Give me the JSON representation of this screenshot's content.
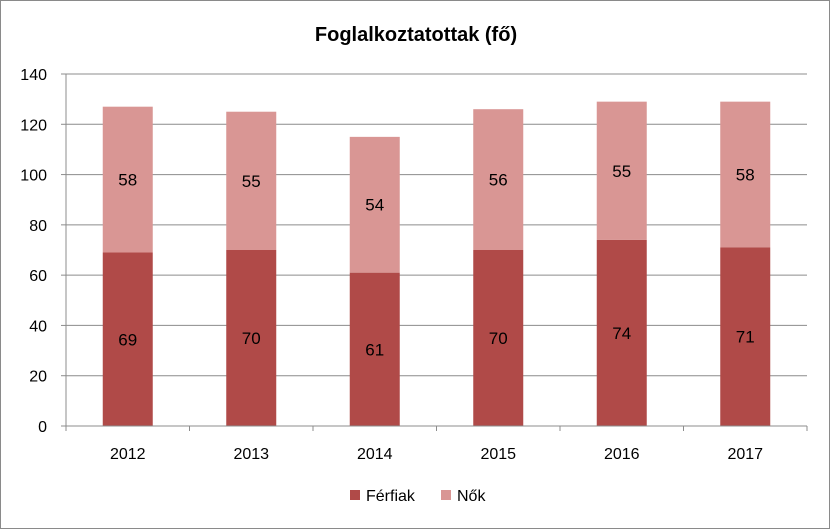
{
  "chart_data": {
    "type": "bar",
    "stacked": true,
    "title": "Foglalkoztatottak (fő)",
    "categories": [
      "2012",
      "2013",
      "2014",
      "2015",
      "2016",
      "2017"
    ],
    "series": [
      {
        "name": "Férfiak",
        "values": [
          69,
          70,
          61,
          70,
          74,
          71
        ],
        "color": "#b04a48"
      },
      {
        "name": "Nők",
        "values": [
          58,
          55,
          54,
          56,
          55,
          58
        ],
        "color": "#d99694"
      }
    ],
    "ylim": [
      0,
      140
    ],
    "yticks": [
      0,
      20,
      40,
      60,
      80,
      100,
      120,
      140
    ],
    "grid": true,
    "legend": "bottom",
    "data_labels": true
  }
}
